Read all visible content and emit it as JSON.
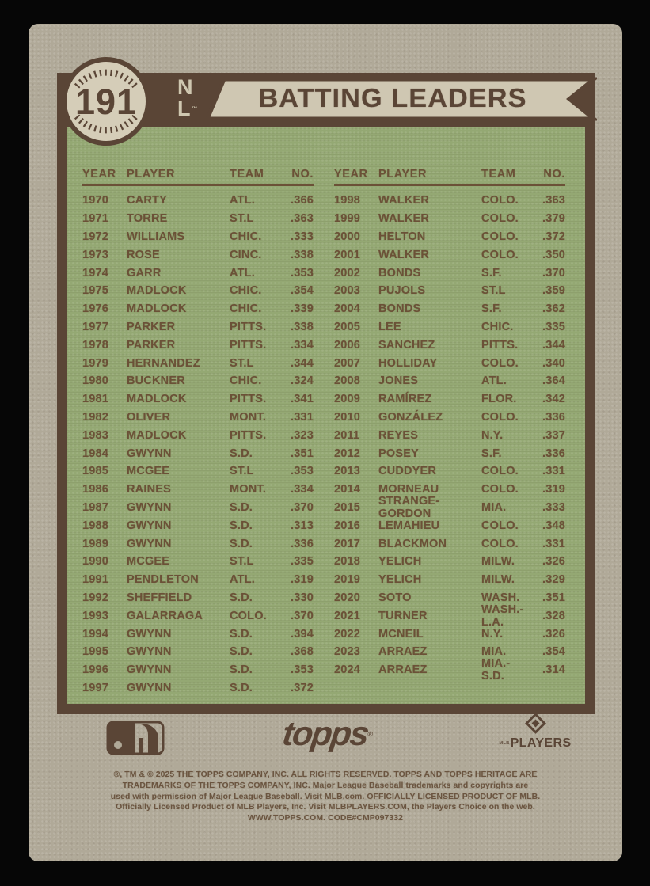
{
  "card": {
    "number": "191",
    "league": {
      "top": "N",
      "bottom": "L",
      "tm": "™"
    },
    "title": "BATTING LEADERS",
    "table": {
      "headers": [
        "YEAR",
        "PLAYER",
        "TEAM",
        "NO."
      ],
      "left_rows": [
        [
          "1970",
          "CARTY",
          "ATL.",
          ".366"
        ],
        [
          "1971",
          "TORRE",
          "ST.L",
          ".363"
        ],
        [
          "1972",
          "WILLIAMS",
          "CHIC.",
          ".333"
        ],
        [
          "1973",
          "ROSE",
          "CINC.",
          ".338"
        ],
        [
          "1974",
          "GARR",
          "ATL.",
          ".353"
        ],
        [
          "1975",
          "MADLOCK",
          "CHIC.",
          ".354"
        ],
        [
          "1976",
          "MADLOCK",
          "CHIC.",
          ".339"
        ],
        [
          "1977",
          "PARKER",
          "PITTS.",
          ".338"
        ],
        [
          "1978",
          "PARKER",
          "PITTS.",
          ".334"
        ],
        [
          "1979",
          "HERNANDEZ",
          "ST.L",
          ".344"
        ],
        [
          "1980",
          "BUCKNER",
          "CHIC.",
          ".324"
        ],
        [
          "1981",
          "MADLOCK",
          "PITTS.",
          ".341"
        ],
        [
          "1982",
          "OLIVER",
          "MONT.",
          ".331"
        ],
        [
          "1983",
          "MADLOCK",
          "PITTS.",
          ".323"
        ],
        [
          "1984",
          "GWYNN",
          "S.D.",
          ".351"
        ],
        [
          "1985",
          "MCGEE",
          "ST.L",
          ".353"
        ],
        [
          "1986",
          "RAINES",
          "MONT.",
          ".334"
        ],
        [
          "1987",
          "GWYNN",
          "S.D.",
          ".370"
        ],
        [
          "1988",
          "GWYNN",
          "S.D.",
          ".313"
        ],
        [
          "1989",
          "GWYNN",
          "S.D.",
          ".336"
        ],
        [
          "1990",
          "MCGEE",
          "ST.L",
          ".335"
        ],
        [
          "1991",
          "PENDLETON",
          "ATL.",
          ".319"
        ],
        [
          "1992",
          "SHEFFIELD",
          "S.D.",
          ".330"
        ],
        [
          "1993",
          "GALARRAGA",
          "COLO.",
          ".370"
        ],
        [
          "1994",
          "GWYNN",
          "S.D.",
          ".394"
        ],
        [
          "1995",
          "GWYNN",
          "S.D.",
          ".368"
        ],
        [
          "1996",
          "GWYNN",
          "S.D.",
          ".353"
        ],
        [
          "1997",
          "GWYNN",
          "S.D.",
          ".372"
        ]
      ],
      "right_rows": [
        [
          "1998",
          "WALKER",
          "COLO.",
          ".363"
        ],
        [
          "1999",
          "WALKER",
          "COLO.",
          ".379"
        ],
        [
          "2000",
          "HELTON",
          "COLO.",
          ".372"
        ],
        [
          "2001",
          "WALKER",
          "COLO.",
          ".350"
        ],
        [
          "2002",
          "BONDS",
          "S.F.",
          ".370"
        ],
        [
          "2003",
          "PUJOLS",
          "ST.L",
          ".359"
        ],
        [
          "2004",
          "BONDS",
          "S.F.",
          ".362"
        ],
        [
          "2005",
          "LEE",
          "CHIC.",
          ".335"
        ],
        [
          "2006",
          "SANCHEZ",
          "PITTS.",
          ".344"
        ],
        [
          "2007",
          "HOLLIDAY",
          "COLO.",
          ".340"
        ],
        [
          "2008",
          "JONES",
          "ATL.",
          ".364"
        ],
        [
          "2009",
          "RAMÍREZ",
          "FLOR.",
          ".342"
        ],
        [
          "2010",
          "GONZÁLEZ",
          "COLO.",
          ".336"
        ],
        [
          "2011",
          "REYES",
          "N.Y.",
          ".337"
        ],
        [
          "2012",
          "POSEY",
          "S.F.",
          ".336"
        ],
        [
          "2013",
          "CUDDYER",
          "COLO.",
          ".331"
        ],
        [
          "2014",
          "MORNEAU",
          "COLO.",
          ".319"
        ],
        [
          "2015",
          "STRANGE-GORDON",
          "MIA.",
          ".333"
        ],
        [
          "2016",
          "LEMAHIEU",
          "COLO.",
          ".348"
        ],
        [
          "2017",
          "BLACKMON",
          "COLO.",
          ".331"
        ],
        [
          "2018",
          "YELICH",
          "MILW.",
          ".326"
        ],
        [
          "2019",
          "YELICH",
          "MILW.",
          ".329"
        ],
        [
          "2020",
          "SOTO",
          "WASH.",
          ".351"
        ],
        [
          "2021",
          "TURNER",
          "WASH.-L.A.",
          ".328"
        ],
        [
          "2022",
          "MCNEIL",
          "N.Y.",
          ".326"
        ],
        [
          "2023",
          "ARRAEZ",
          "MIA.",
          ".354"
        ],
        [
          "2024",
          "ARRAEZ",
          "MIA.-S.D.",
          ".314"
        ]
      ]
    },
    "footer": {
      "topps_wordmark": "topps",
      "topps_reg": "®",
      "players_mlb_prefix": "MLB",
      "players_wordmark": "PLAYERS",
      "copyright_lines": [
        "®, TM & © 2025 THE TOPPS COMPANY, INC.  ALL RIGHTS RESERVED.  TOPPS AND TOPPS HERITAGE ARE",
        "TRADEMARKS OF THE TOPPS COMPANY, INC. Major League Baseball trademarks  and copyrights are",
        "used with permission of Major League Baseball. Visit MLB.com. OFFICIALLY LICENSED PRODUCT OF MLB.",
        "Officially Licensed Product of MLB Players, Inc. Visit MLBPLAYERS.COM, the Players Choice on the web.",
        "WWW.TOPPS.COM. CODE#CMP097332"
      ]
    },
    "colors": {
      "brown": "#5a4536",
      "cream": "#cfc7b2",
      "green": "#94a873",
      "card_bg": "#b0a998",
      "text_brown": "#6b5137"
    }
  }
}
